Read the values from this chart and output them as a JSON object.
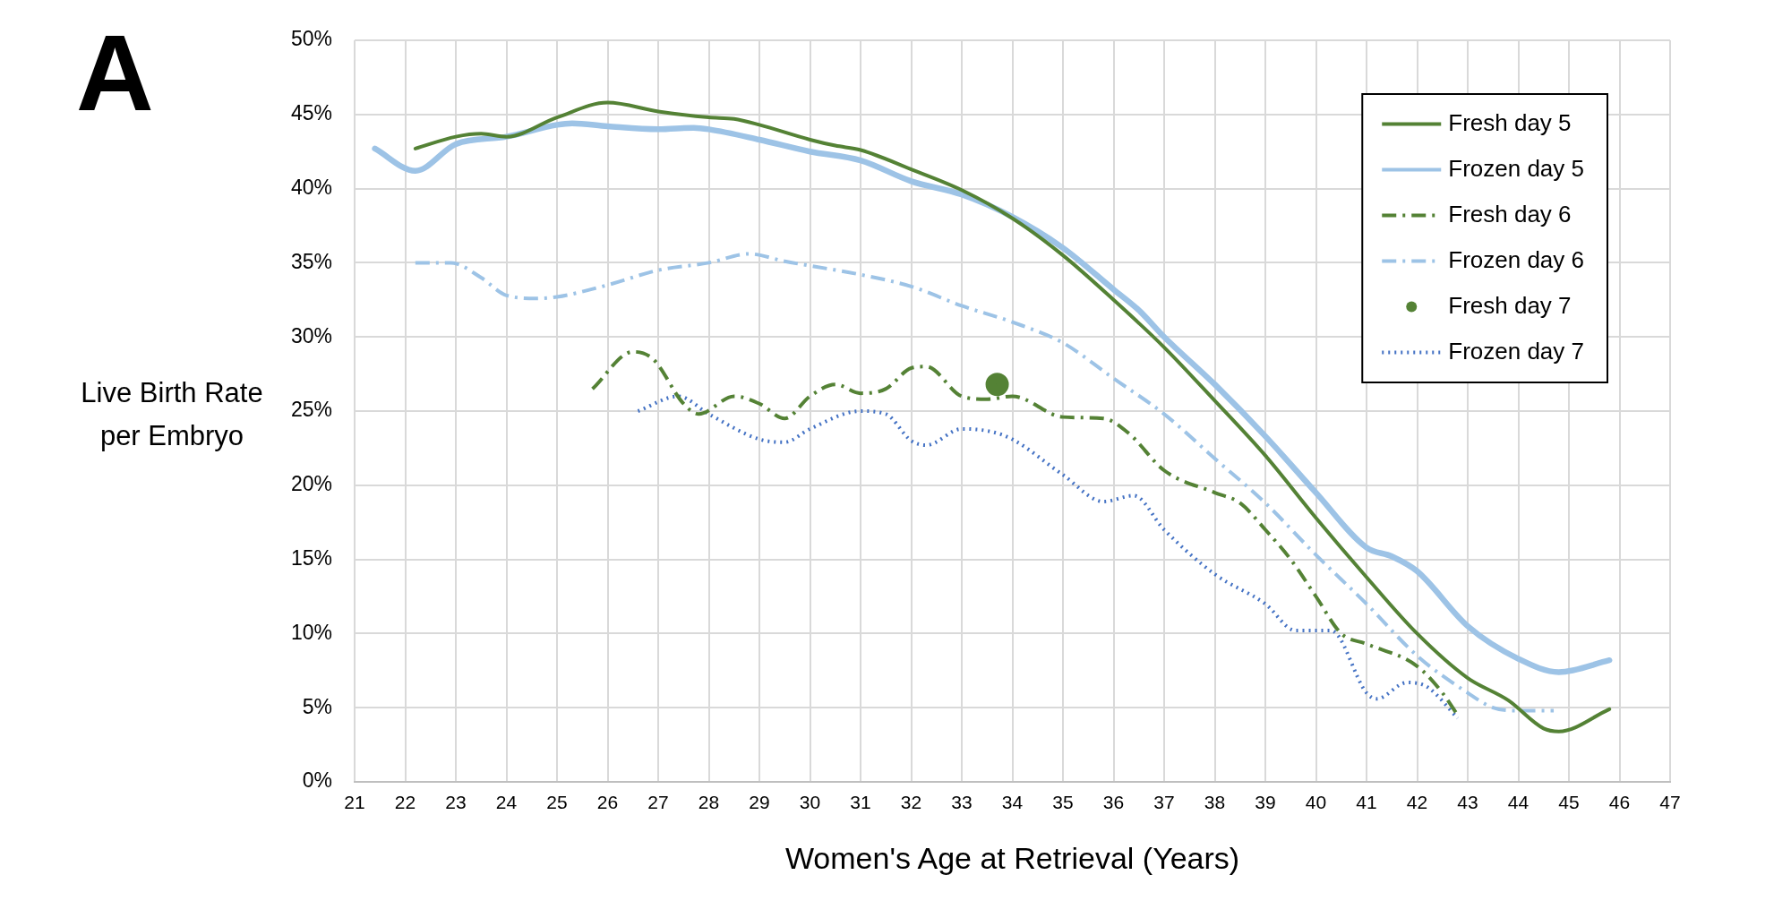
{
  "chart_data": {
    "type": "line",
    "xlabel": "Women's Age at Retrieval (Years)",
    "ylabel": "Live Birth Rate per Embryo",
    "annotations": [
      "A"
    ],
    "xlim": [
      21,
      47
    ],
    "xticks": [
      21,
      22,
      23,
      24,
      25,
      26,
      27,
      28,
      29,
      30,
      31,
      32,
      33,
      34,
      35,
      36,
      37,
      38,
      39,
      40,
      41,
      42,
      43,
      44,
      45,
      46,
      47
    ],
    "ylim": [
      0,
      50
    ],
    "yticks": [
      {
        "value": 0,
        "label": "0%"
      },
      {
        "value": 5,
        "label": "5%"
      },
      {
        "value": 10,
        "label": "10%"
      },
      {
        "value": 15,
        "label": "15%"
      },
      {
        "value": 20,
        "label": "20%"
      },
      {
        "value": 25,
        "label": "25%"
      },
      {
        "value": 30,
        "label": "30%"
      },
      {
        "value": 35,
        "label": "35%"
      },
      {
        "value": 40,
        "label": "40%"
      },
      {
        "value": 45,
        "label": "45%"
      },
      {
        "value": 50,
        "label": "50%"
      }
    ],
    "grid": true,
    "legend": "top right",
    "series": [
      {
        "name": "Fresh day 5",
        "color": "#548235",
        "line_style": "solid",
        "marker": "none",
        "x": [
          22.2,
          23,
          23.5,
          24,
          25,
          26,
          27,
          28,
          28.5,
          29,
          30,
          30.5,
          31,
          32,
          33,
          34,
          35,
          36,
          37,
          38,
          39,
          40,
          41,
          42,
          43,
          43.8,
          44.5,
          44.8,
          45.8
        ],
        "values": [
          42.7,
          43.5,
          43.7,
          43.5,
          44.8,
          45.8,
          45.2,
          44.8,
          44.7,
          44.3,
          43.3,
          42.9,
          42.6,
          41.3,
          39.9,
          38,
          35.5,
          32.5,
          29.3,
          25.7,
          22,
          17.8,
          13.8,
          10,
          7,
          5.5,
          3.6,
          3.4,
          4.9
        ]
      },
      {
        "name": "Frozen day 5",
        "color": "#9dc3e6",
        "line_style": "solid",
        "marker": "none",
        "x": [
          21.4,
          22.2,
          23,
          24,
          25,
          25.3,
          26,
          27,
          27.7,
          28,
          29,
          30,
          31,
          32,
          33,
          34,
          35,
          36,
          36.5,
          37,
          38,
          39,
          40,
          41,
          41.5,
          42,
          43,
          44,
          44.8,
          45.8
        ],
        "values": [
          42.7,
          41.2,
          43,
          43.5,
          44.3,
          44.4,
          44.2,
          44,
          44.1,
          44,
          43.3,
          42.5,
          41.9,
          40.5,
          39.6,
          38.1,
          36,
          33.2,
          31.8,
          30,
          26.8,
          23.3,
          19.5,
          15.8,
          15.2,
          14.2,
          10.5,
          8.3,
          7.4,
          8.2
        ]
      },
      {
        "name": "Fresh day 6",
        "color": "#548235",
        "line_style": "dashed",
        "marker": "none",
        "x": [
          25.7,
          26.5,
          26.9,
          27.5,
          27.8,
          28.5,
          29,
          29.5,
          30,
          30.5,
          31,
          31.5,
          32,
          32.3,
          33,
          33.5,
          34,
          35,
          35.8,
          36.3,
          37,
          38,
          38.5,
          39,
          39.5,
          40,
          40.5,
          41,
          42,
          42.5,
          42.8
        ],
        "values": [
          26.5,
          29,
          28.5,
          25.5,
          24.8,
          26,
          25.5,
          24.5,
          26,
          26.8,
          26.2,
          26.5,
          27.9,
          28,
          26,
          25.8,
          26,
          24.6,
          24.5,
          23.5,
          21,
          19.5,
          18.8,
          17,
          15,
          12.5,
          10,
          9.3,
          7.8,
          6,
          4.5
        ]
      },
      {
        "name": "Frozen day 6",
        "color": "#9dc3e6",
        "line_style": "dashed",
        "marker": "none",
        "x": [
          22.2,
          22.9,
          23.5,
          24,
          24.6,
          25,
          26,
          27,
          28,
          28.8,
          29.5,
          30,
          31,
          32,
          33,
          34,
          35,
          36,
          37,
          38,
          39,
          40,
          41,
          42,
          43,
          43.5,
          44,
          44.7
        ],
        "values": [
          35,
          35,
          34,
          32.8,
          32.6,
          32.7,
          33.5,
          34.5,
          35,
          35.6,
          35.1,
          34.8,
          34.2,
          33.4,
          32.1,
          31,
          29.6,
          27.2,
          24.8,
          21.8,
          18.8,
          15.3,
          12,
          8.5,
          6,
          5,
          4.8,
          4.8
        ]
      },
      {
        "name": "Fresh day 7",
        "color": "#548235",
        "type": "scatter",
        "marker": "circle",
        "x": [
          33.7
        ],
        "values": [
          26.8
        ]
      },
      {
        "name": "Frozen day 7",
        "color": "#4472c4",
        "line_style": "dotted",
        "marker": "none",
        "x": [
          26.6,
          27.4,
          28,
          29,
          29.5,
          30,
          31,
          31.5,
          32,
          32.3,
          33,
          33.6,
          34,
          35,
          35.8,
          36.4,
          37,
          38,
          39,
          39.6,
          40.3,
          41,
          41.2,
          41.8,
          42.2,
          42.8
        ],
        "values": [
          25,
          26,
          24.8,
          23.1,
          22.9,
          23.8,
          25,
          24.8,
          23,
          22.7,
          23.8,
          23.6,
          23.1,
          20.7,
          18.9,
          19.3,
          17,
          14,
          12,
          10.2,
          10.2,
          6,
          5.6,
          6.7,
          6.4,
          4.3
        ]
      }
    ]
  }
}
